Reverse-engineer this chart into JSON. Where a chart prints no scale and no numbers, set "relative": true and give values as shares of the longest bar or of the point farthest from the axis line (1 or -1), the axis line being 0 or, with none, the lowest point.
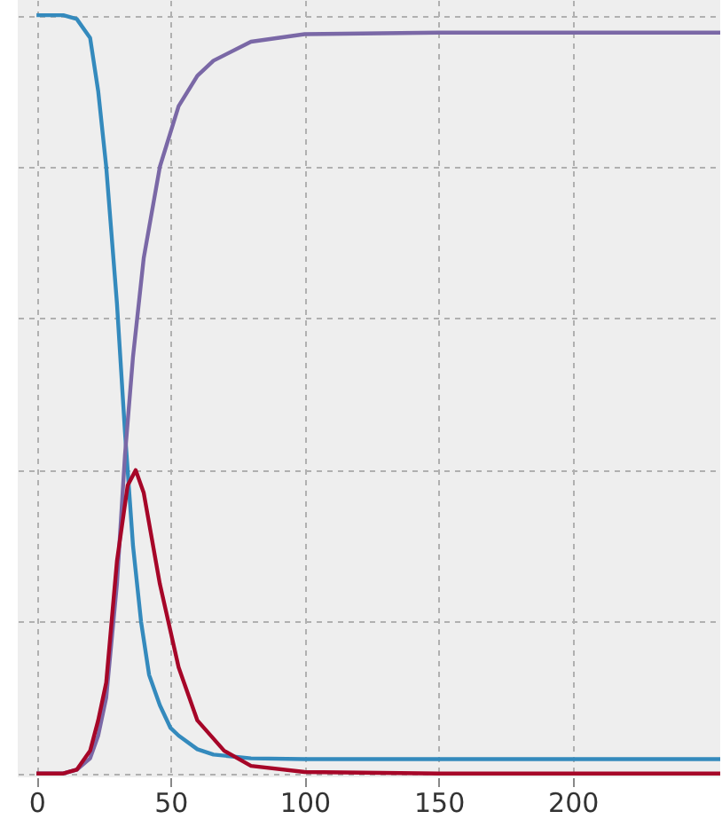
{
  "chart_data": {
    "type": "line",
    "relative": true,
    "xlim": [
      -7,
      255
    ],
    "xticks": [
      0,
      50,
      100,
      150,
      200
    ],
    "grid": true,
    "legend": false,
    "marker": "none",
    "line_style": "solid",
    "series": [
      {
        "color": "#348abd",
        "x": [
          0,
          10,
          15,
          20,
          23,
          26,
          30,
          33,
          36,
          39,
          42,
          46,
          50,
          53,
          60,
          66,
          80,
          100,
          150,
          200,
          255
        ],
        "values": [
          1,
          1,
          0.995,
          0.97,
          0.9,
          0.8,
          0.62,
          0.45,
          0.3,
          0.2,
          0.13,
          0.09,
          0.06,
          0.05,
          0.032,
          0.025,
          0.02,
          0.019,
          0.019,
          0.019,
          0.019
        ]
      },
      {
        "color": "#7a68a6",
        "x": [
          0,
          10,
          15,
          20,
          23,
          26,
          30,
          33,
          36,
          40,
          46,
          53,
          60,
          66,
          80,
          100,
          150,
          200,
          255
        ],
        "values": [
          0,
          0,
          0.005,
          0.02,
          0.05,
          0.1,
          0.25,
          0.42,
          0.55,
          0.68,
          0.8,
          0.88,
          0.92,
          0.94,
          0.965,
          0.975,
          0.977,
          0.977,
          0.977
        ]
      },
      {
        "color": "#a60628",
        "x": [
          0,
          10,
          15,
          20,
          23,
          26,
          30,
          34,
          37,
          40,
          43,
          46,
          53,
          60,
          70,
          80,
          100,
          150,
          200,
          255
        ],
        "values": [
          0,
          0,
          0.005,
          0.03,
          0.07,
          0.12,
          0.28,
          0.38,
          0.4,
          0.37,
          0.31,
          0.25,
          0.14,
          0.07,
          0.03,
          0.01,
          0.002,
          0,
          0,
          0
        ]
      }
    ]
  }
}
